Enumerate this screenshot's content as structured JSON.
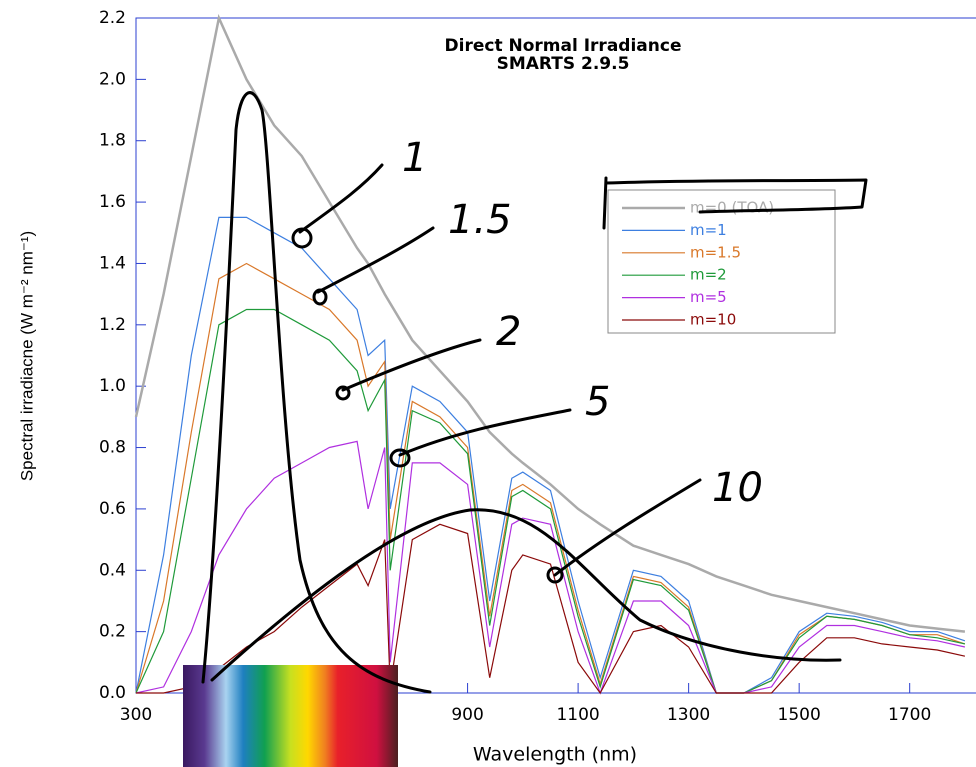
{
  "chart_data": {
    "type": "line",
    "title": "Direct Normal Irradiance",
    "subtitle": "SMARTS 2.9.5",
    "x_label": "Wavelength (nm)",
    "y_label": "Spectral irradiacne (W m⁻² nm⁻¹)",
    "x": [
      300,
      350,
      400,
      450,
      500,
      550,
      600,
      650,
      700,
      720,
      750,
      760,
      800,
      850,
      900,
      940,
      980,
      1000,
      1050,
      1100,
      1140,
      1200,
      1250,
      1300,
      1350,
      1400,
      1450,
      1500,
      1550,
      1600,
      1650,
      1700,
      1750,
      1800
    ],
    "series": [
      {
        "name": "m=0 (TOA)",
        "color": "#aaaaaa",
        "values": [
          0.9,
          1.3,
          1.75,
          2.2,
          2.0,
          1.85,
          1.75,
          1.6,
          1.45,
          1.4,
          1.3,
          1.27,
          1.15,
          1.05,
          0.95,
          0.85,
          0.78,
          0.75,
          0.68,
          0.6,
          0.55,
          0.48,
          0.45,
          0.42,
          0.38,
          0.35,
          0.32,
          0.3,
          0.28,
          0.26,
          0.24,
          0.22,
          0.21,
          0.2
        ]
      },
      {
        "name": "m=1",
        "color": "#3d7fe0",
        "values": [
          0.0,
          0.45,
          1.1,
          1.55,
          1.55,
          1.5,
          1.45,
          1.35,
          1.25,
          1.1,
          1.15,
          0.6,
          1.0,
          0.95,
          0.85,
          0.3,
          0.7,
          0.72,
          0.66,
          0.3,
          0.05,
          0.4,
          0.38,
          0.3,
          0.0,
          0.0,
          0.05,
          0.2,
          0.26,
          0.25,
          0.23,
          0.2,
          0.2,
          0.17
        ]
      },
      {
        "name": "m=1.5",
        "color": "#d9782a",
        "values": [
          0.0,
          0.3,
          0.85,
          1.35,
          1.4,
          1.35,
          1.3,
          1.25,
          1.15,
          1.0,
          1.08,
          0.5,
          0.95,
          0.9,
          0.8,
          0.25,
          0.66,
          0.68,
          0.62,
          0.27,
          0.03,
          0.38,
          0.36,
          0.28,
          0.0,
          0.0,
          0.04,
          0.19,
          0.25,
          0.24,
          0.22,
          0.19,
          0.19,
          0.16
        ]
      },
      {
        "name": "m=2",
        "color": "#1f9a3a",
        "values": [
          0.0,
          0.2,
          0.7,
          1.2,
          1.25,
          1.25,
          1.2,
          1.15,
          1.05,
          0.92,
          1.02,
          0.4,
          0.92,
          0.88,
          0.78,
          0.22,
          0.64,
          0.66,
          0.6,
          0.25,
          0.02,
          0.37,
          0.35,
          0.27,
          0.0,
          0.0,
          0.04,
          0.18,
          0.25,
          0.24,
          0.22,
          0.19,
          0.18,
          0.16
        ]
      },
      {
        "name": "m=5",
        "color": "#b030e0",
        "values": [
          0.0,
          0.02,
          0.2,
          0.45,
          0.6,
          0.7,
          0.75,
          0.8,
          0.82,
          0.6,
          0.8,
          0.1,
          0.75,
          0.75,
          0.68,
          0.15,
          0.55,
          0.57,
          0.55,
          0.2,
          0.0,
          0.3,
          0.3,
          0.22,
          0.0,
          0.0,
          0.02,
          0.15,
          0.22,
          0.22,
          0.2,
          0.18,
          0.17,
          0.15
        ]
      },
      {
        "name": "m=10",
        "color": "#8b0a0a",
        "values": [
          0.0,
          0.0,
          0.02,
          0.08,
          0.15,
          0.2,
          0.28,
          0.35,
          0.42,
          0.35,
          0.5,
          0.02,
          0.5,
          0.55,
          0.52,
          0.05,
          0.4,
          0.45,
          0.42,
          0.1,
          0.0,
          0.2,
          0.22,
          0.15,
          0.0,
          0.0,
          0.0,
          0.1,
          0.18,
          0.18,
          0.16,
          0.15,
          0.14,
          0.12
        ]
      }
    ],
    "xlim": [
      300,
      1820
    ],
    "ylim": [
      0,
      2.2
    ],
    "xticks": [
      300,
      900,
      1100,
      1300,
      1500,
      1700
    ],
    "yticks": [
      {
        "value": 0,
        "label": "0.0"
      },
      {
        "value": 0.2,
        "label": "0.2"
      },
      {
        "value": 0.4,
        "label": "0.4"
      },
      {
        "value": 0.6,
        "label": "0.6"
      },
      {
        "value": 0.8,
        "label": "0.8"
      },
      {
        "value": 1,
        "label": "1.0"
      },
      {
        "value": 1.2,
        "label": "1.2"
      },
      {
        "value": 1.4,
        "label": "1.4"
      },
      {
        "value": 1.6,
        "label": "1.6"
      },
      {
        "value": 1.8,
        "label": "1.8"
      },
      {
        "value": 2,
        "label": "2.0"
      },
      {
        "value": 2.2,
        "label": "2.2"
      }
    ],
    "annotations": [
      "1",
      "1.5",
      "2",
      "5",
      "10"
    ]
  }
}
